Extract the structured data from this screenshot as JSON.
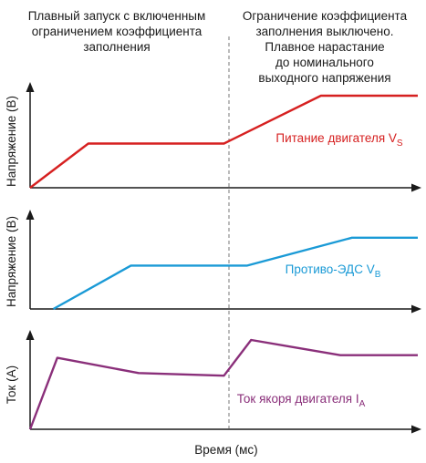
{
  "header": {
    "left_lines": [
      "Плавный запуск с включенным",
      "ограничением коэффициента",
      "заполнения"
    ],
    "right_lines": [
      "Ограничение коэффициента",
      "заполнения выключено.",
      "Плавное нарастание",
      "до номинального",
      "выходного напряжения"
    ]
  },
  "xlabel": "Время (мс)",
  "colors": {
    "axis": "#1a1a1a",
    "supply": "#d62020",
    "back_emf": "#1a9ad6",
    "current": "#8a2f7a",
    "divider": "#777777"
  },
  "chart_data": [
    {
      "type": "line",
      "ylabel": "Напряжение (В)",
      "xlim": [
        0,
        100
      ],
      "ylim": [
        0,
        100
      ],
      "series": [
        {
          "name": "Питание двигателя V",
          "name_sub": "S",
          "color": "#d62020",
          "x": [
            0,
            15,
            50,
            75,
            100
          ],
          "y": [
            0,
            48,
            48,
            100,
            100
          ]
        }
      ]
    },
    {
      "type": "line",
      "ylabel": "Напряжение (В)",
      "xlim": [
        0,
        100
      ],
      "ylim": [
        0,
        100
      ],
      "series": [
        {
          "name": "Противо-ЭДС V",
          "name_sub": "B",
          "color": "#1a9ad6",
          "x": [
            6,
            26,
            56,
            83,
            100
          ],
          "y": [
            0,
            56,
            56,
            92,
            92
          ]
        }
      ]
    },
    {
      "type": "line",
      "ylabel": "Ток (А)",
      "xlim": [
        0,
        100
      ],
      "ylim": [
        0,
        100
      ],
      "series": [
        {
          "name": "Ток якоря двигателя I",
          "name_sub": "A",
          "color": "#8a2f7a",
          "x": [
            0,
            7,
            28,
            50,
            57,
            80,
            100
          ],
          "y": [
            0,
            80,
            63,
            60,
            100,
            83,
            83
          ]
        }
      ]
    }
  ]
}
